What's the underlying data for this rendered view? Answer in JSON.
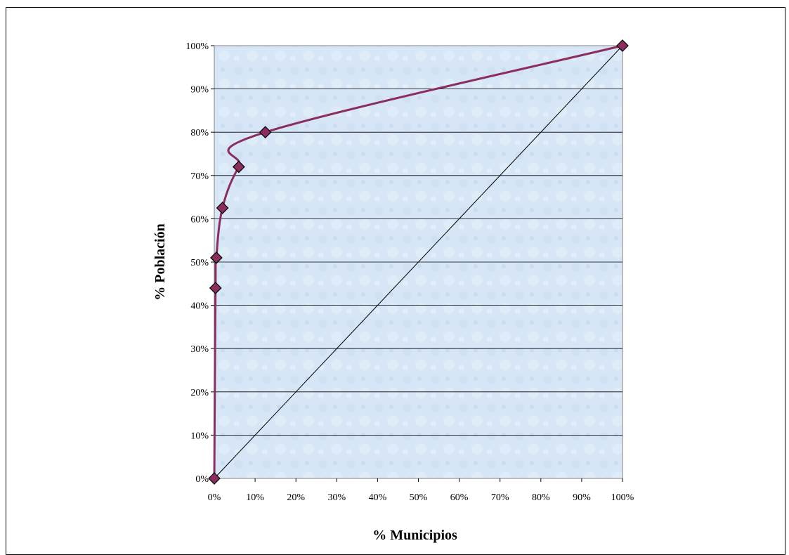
{
  "chart_data": {
    "type": "line",
    "title": "",
    "xlabel": "% Municipios",
    "ylabel": "% Población",
    "xlim": [
      0,
      100
    ],
    "ylim": [
      0,
      100
    ],
    "x_ticks": [
      "0%",
      "10%",
      "20%",
      "30%",
      "40%",
      "50%",
      "60%",
      "70%",
      "80%",
      "90%",
      "100%"
    ],
    "y_ticks": [
      "0%",
      "10%",
      "20%",
      "30%",
      "40%",
      "50%",
      "60%",
      "70%",
      "80%",
      "90%",
      "100%"
    ],
    "grid": "horizontal",
    "legend": "none",
    "series": [
      {
        "type": "line",
        "color": "#8B2D5E",
        "marker": "diamond",
        "x": [
          0,
          0.3,
          0.5,
          2,
          6,
          12.5,
          100
        ],
        "y": [
          0,
          44,
          51,
          62.5,
          72,
          80,
          100
        ]
      },
      {
        "type": "reference-line",
        "color": "#000000",
        "x": [
          0,
          100
        ],
        "y": [
          0,
          100
        ]
      }
    ]
  }
}
